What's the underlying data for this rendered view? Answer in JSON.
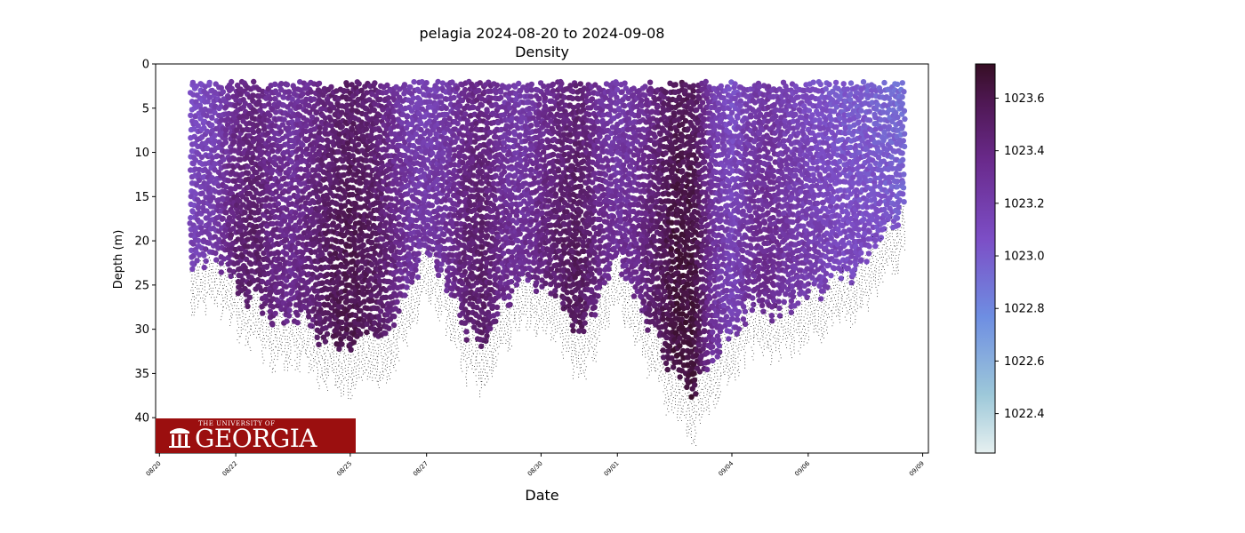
{
  "chart_data": {
    "type": "scatter",
    "title": "pelagia 2024-08-20 to 2024-09-08",
    "subtitle": "Density",
    "xlabel": "Date",
    "ylabel": "Depth (m)",
    "x_ticks": [
      "08/20",
      "08/22",
      "08/25",
      "08/27",
      "08/30",
      "09/01",
      "09/04",
      "09/06",
      "09/09"
    ],
    "y_ticks": [
      0,
      5,
      10,
      15,
      20,
      25,
      30,
      35,
      40
    ],
    "ylim": [
      44,
      0
    ],
    "colorbar": {
      "ticks": [
        1022.4,
        1022.6,
        1022.8,
        1023.0,
        1023.2,
        1023.4,
        1023.6
      ],
      "range": [
        1022.25,
        1023.73
      ],
      "colormap": "dense"
    },
    "logo_text": {
      "small": "THE UNIVERSITY OF",
      "large": "GEORGIA"
    },
    "profile_envelope": {
      "dates": [
        "08/20 20:00",
        "08/21 12:00",
        "08/22 00:00",
        "08/22 12:00",
        "08/23 00:00",
        "08/23 12:00",
        "08/24 00:00",
        "08/24 12:00",
        "08/25 00:00",
        "08/25 12:00",
        "08/26 00:00",
        "08/26 12:00",
        "08/27 00:00",
        "08/27 12:00",
        "08/28 00:00",
        "08/28 12:00",
        "08/29 00:00",
        "08/29 12:00",
        "08/30 00:00",
        "08/30 12:00",
        "08/31 00:00",
        "08/31 12:00",
        "09/01 00:00",
        "09/01 12:00",
        "09/02 00:00",
        "09/02 12:00",
        "09/03 00:00",
        "09/03 12:00",
        "09/04 00:00",
        "09/04 12:00",
        "09/05 00:00",
        "09/05 12:00",
        "09/06 00:00",
        "09/06 12:00",
        "09/07 00:00",
        "09/07 12:00",
        "09/08 00:00",
        "09/08 12:00"
      ],
      "max_depth": [
        26,
        25,
        28,
        30,
        32,
        31,
        33,
        34,
        35,
        34,
        33,
        28,
        24,
        27,
        33,
        35,
        30,
        27,
        28,
        30,
        34,
        30,
        25,
        30,
        34,
        38,
        40,
        36,
        33,
        30,
        31,
        30,
        29,
        28,
        27,
        25,
        22,
        20
      ],
      "mean_density": [
        1023.15,
        1023.25,
        1023.45,
        1023.5,
        1023.4,
        1023.35,
        1023.45,
        1023.55,
        1023.6,
        1023.55,
        1023.45,
        1023.3,
        1023.25,
        1023.3,
        1023.45,
        1023.5,
        1023.35,
        1023.3,
        1023.4,
        1023.5,
        1023.55,
        1023.4,
        1023.3,
        1023.35,
        1023.5,
        1023.65,
        1023.65,
        1023.3,
        1023.15,
        1023.3,
        1023.35,
        1023.25,
        1023.2,
        1023.15,
        1023.1,
        1023.1,
        1023.05,
        1023.0
      ]
    }
  }
}
